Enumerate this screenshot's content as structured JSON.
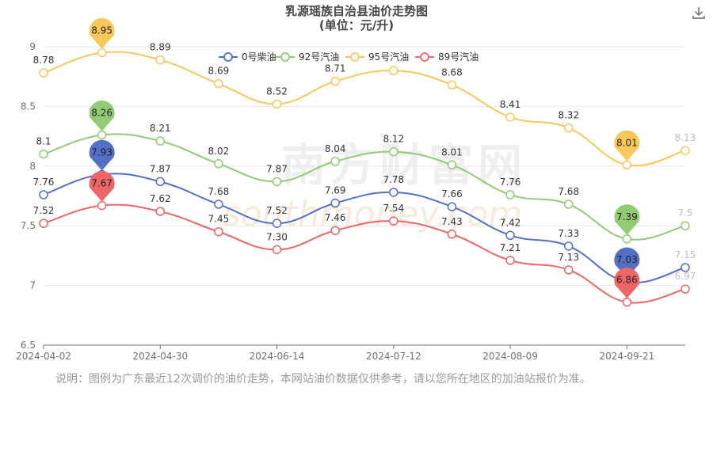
{
  "title": {
    "line1": "乳源瑶族自治县油价走势图",
    "line2": "(单位：元/升)"
  },
  "watermark": {
    "cn": "南方财富网",
    "en": "southmoney.com"
  },
  "toolbar": {
    "download_icon": "download-icon"
  },
  "note": "说明：图例为广东最近12次调价的油价走势，本网站油价数据仅供参考，请以您所在地区的加油站报价为准。",
  "chart_data": {
    "type": "line",
    "x_tick_labels": [
      "2024-04-02",
      "2024-04-30",
      "2024-06-14",
      "2024-07-12",
      "2024-08-09",
      "2024-09-21"
    ],
    "x_tick_index": [
      0,
      2,
      4,
      6,
      8,
      10
    ],
    "ylim": [
      6.5,
      9
    ],
    "y_ticks": [
      6.5,
      7,
      7.5,
      8,
      8.5,
      9
    ],
    "y_tick_labels": [
      "6.5",
      "7",
      "7.5",
      "8",
      "8.5",
      "9"
    ],
    "legend_position": "top-center",
    "series": [
      {
        "name": "0号柴油",
        "color": "#5470c6",
        "values": [
          7.76,
          7.93,
          7.87,
          7.68,
          7.52,
          7.69,
          7.78,
          7.66,
          7.42,
          7.33,
          7.03,
          7.15
        ],
        "max_index": 1,
        "max_label": "7.93",
        "min_index": 10,
        "min_label": "7.03"
      },
      {
        "name": "92号汽油",
        "color": "#91cc75",
        "values": [
          8.1,
          8.26,
          8.21,
          8.02,
          7.87,
          8.04,
          8.12,
          8.01,
          7.76,
          7.68,
          7.39,
          7.5
        ],
        "max_index": 1,
        "max_label": "8.26",
        "min_index": 10,
        "min_label": "7.39"
      },
      {
        "name": "95号汽油",
        "color": "#fac858",
        "values": [
          8.78,
          8.95,
          8.89,
          8.69,
          8.52,
          8.71,
          8.8,
          8.68,
          8.41,
          8.32,
          8.01,
          8.13
        ],
        "max_index": 1,
        "max_label": "8.95",
        "min_index": 10,
        "min_label": "8.01"
      },
      {
        "name": "89号汽油",
        "color": "#ee6666",
        "values": [
          7.52,
          7.67,
          7.62,
          7.45,
          7.3,
          7.46,
          7.54,
          7.43,
          7.21,
          7.13,
          6.86,
          6.97
        ],
        "max_index": 1,
        "max_label": "7.67",
        "min_index": 10,
        "min_label": "6.86"
      }
    ],
    "labels": {
      "0号柴油": [
        "7.76",
        "",
        "7.87",
        "7.68",
        "7.52",
        "7.69",
        "7.78",
        "7.66",
        "7.42",
        "7.33",
        "",
        "7.15"
      ],
      "92号汽油": [
        "8.1",
        "",
        "8.21",
        "8.02",
        "7.87",
        "8.04",
        "8.12",
        "8.01",
        "7.76",
        "7.68",
        "",
        "7.5"
      ],
      "95号汽油": [
        "8.78",
        "",
        "8.89",
        "8.69",
        "8.52",
        "8.71",
        "",
        "8.68",
        "8.41",
        "8.32",
        "",
        "8.13"
      ],
      "89号汽油": [
        "7.52",
        "",
        "7.62",
        "7.45",
        "7.30",
        "7.46",
        "7.54",
        "7.43",
        "7.21",
        "7.13",
        "",
        "6.97"
      ]
    }
  }
}
